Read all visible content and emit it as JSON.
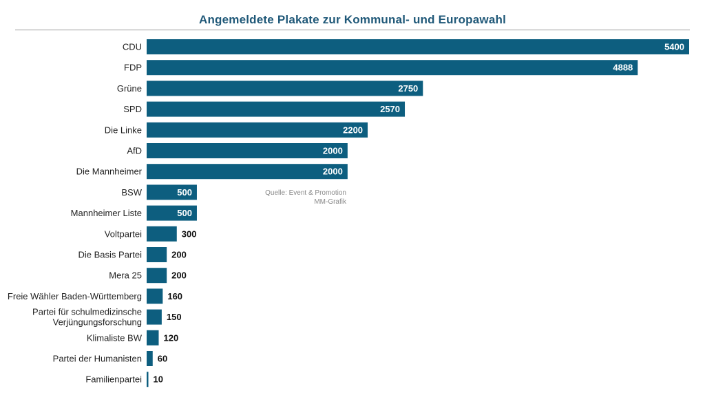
{
  "title": "Angemeldete Plakate zur Kommunal- und Europawahl",
  "source": {
    "line1": "Quelle: Event & Promotion",
    "line2": "MM-Grafik"
  },
  "colors": {
    "bar": "#0d5e7f",
    "title": "#1f5878"
  },
  "chart_data": {
    "type": "bar",
    "orientation": "horizontal",
    "title": "Angemeldete Plakate zur Kommunal- und Europawahl",
    "categories": [
      [
        "CDU"
      ],
      [
        "FDP"
      ],
      [
        "Grüne"
      ],
      [
        "SPD"
      ],
      [
        "Die Linke"
      ],
      [
        "AfD"
      ],
      [
        "Die Mannheimer"
      ],
      [
        "BSW"
      ],
      [
        "Mannheimer Liste"
      ],
      [
        "Voltpartei"
      ],
      [
        "Die Basis Partei"
      ],
      [
        "Mera 25"
      ],
      [
        "Freie Wähler Baden-Württemberg"
      ],
      [
        "Partei für schulmedizinsche",
        "Verjüngungsforschung"
      ],
      [
        "Klimaliste BW"
      ],
      [
        "Partei der Humanisten"
      ],
      [
        "Familienpartei"
      ]
    ],
    "values": [
      5400,
      4888,
      2750,
      2570,
      2200,
      2000,
      2000,
      500,
      500,
      300,
      200,
      200,
      160,
      150,
      120,
      60,
      10
    ],
    "xlim": [
      0,
      5400
    ],
    "grid": false,
    "legend": false
  }
}
